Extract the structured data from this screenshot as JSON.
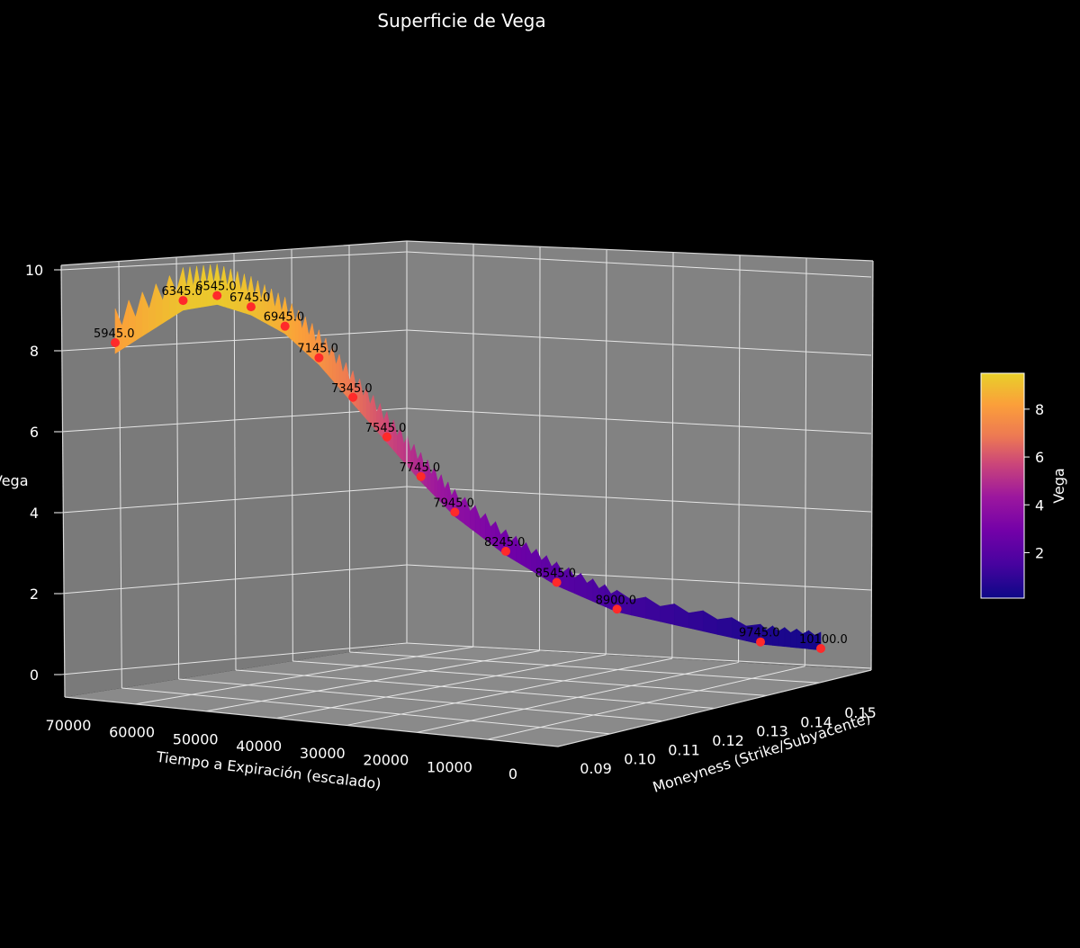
{
  "chart_data": {
    "type": "surface3d",
    "title": "Superficie de Vega",
    "xlabel": "Moneyness (Strike/Subyacente)",
    "ylabel": "Tiempo a Expiración (escalado)",
    "zlabel": "Vega",
    "x_ticks": [
      "0.09",
      "0.10",
      "0.11",
      "0.12",
      "0.13",
      "0.14",
      "0.15"
    ],
    "y_ticks": [
      "70000",
      "60000",
      "50000",
      "40000",
      "30000",
      "20000",
      "10000",
      "0"
    ],
    "z_ticks": [
      "0",
      "2",
      "4",
      "6",
      "8",
      "10"
    ],
    "zlim": [
      0,
      10
    ],
    "colormap": "plasma",
    "colorbar": {
      "label": "Vega",
      "ticks": [
        "2",
        "4",
        "6",
        "8"
      ],
      "range": [
        0.1,
        9.5
      ]
    },
    "highlighted_points": [
      {
        "label": "5945.0",
        "vega": 8.2
      },
      {
        "label": "6345.0",
        "vega": 9.2
      },
      {
        "label": "6545.0",
        "vega": 9.3
      },
      {
        "label": "6745.0",
        "vega": 9.0
      },
      {
        "label": "6945.0",
        "vega": 8.5
      },
      {
        "label": "7145.0",
        "vega": 7.7
      },
      {
        "label": "7345.0",
        "vega": 6.7
      },
      {
        "label": "7545.0",
        "vega": 5.7
      },
      {
        "label": "7745.0",
        "vega": 4.7
      },
      {
        "label": "7945.0",
        "vega": 3.8
      },
      {
        "label": "8245.0",
        "vega": 2.8
      },
      {
        "label": "8545.0",
        "vega": 2.0
      },
      {
        "label": "8900.0",
        "vega": 1.3
      },
      {
        "label": "9745.0",
        "vega": 0.4
      },
      {
        "label": "10100.0",
        "vega": 0.2
      }
    ],
    "point_color": "#ff2a2a",
    "pane_color": "#808080",
    "background": "#000000"
  }
}
